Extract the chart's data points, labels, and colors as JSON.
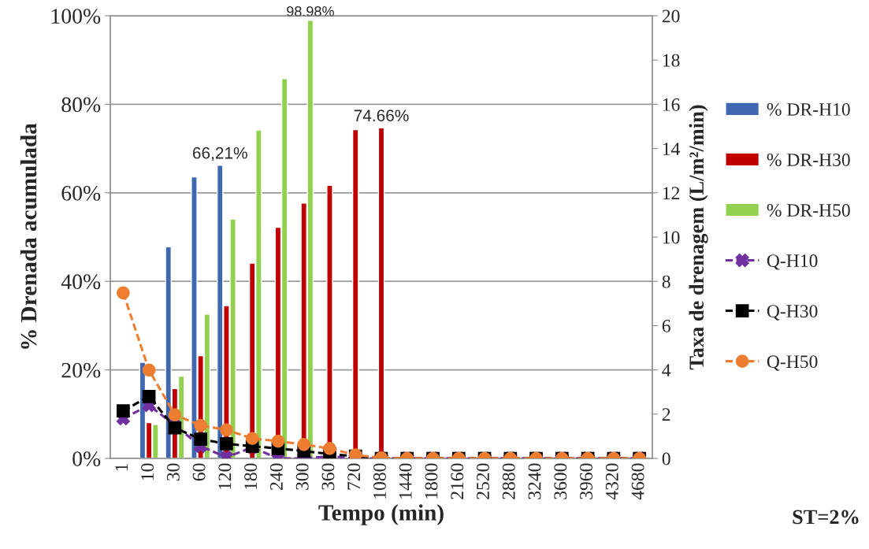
{
  "chart_data": {
    "type": "bar",
    "xlabel": "Tempo (min)",
    "ylabel": "% Drenada acumulada",
    "y2label": "Taxa de drenagem (L/m²/min)",
    "categories": [
      "1",
      "10",
      "30",
      "60",
      "120",
      "180",
      "240",
      "300",
      "360",
      "720",
      "1080",
      "1440",
      "1800",
      "2160",
      "2520",
      "2880",
      "3240",
      "3600",
      "3960",
      "4320",
      "4680"
    ],
    "series": [
      {
        "name": "% DR-H10",
        "color": "#4068b0",
        "values": [
          null,
          21.7,
          47.8,
          63.6,
          66.21,
          null,
          null,
          null,
          null,
          null,
          null,
          null,
          null,
          null,
          null,
          null,
          null,
          null,
          null,
          null,
          null
        ],
        "value_labels": [
          null,
          null,
          null,
          null,
          "66,21%",
          null,
          null,
          null,
          null,
          null,
          null,
          null,
          null,
          null,
          null,
          null,
          null,
          null,
          null,
          null,
          null
        ]
      },
      {
        "name": "% DR-H30",
        "color": "#c00000",
        "values": [
          null,
          8.1,
          15.8,
          23.2,
          34.5,
          44.1,
          52.2,
          57.7,
          61.7,
          74.3,
          74.66,
          null,
          null,
          null,
          null,
          null,
          null,
          null,
          null,
          null,
          null
        ],
        "value_labels": [
          null,
          null,
          null,
          null,
          null,
          null,
          null,
          null,
          null,
          null,
          "74.66%",
          null,
          null,
          null,
          null,
          null,
          null,
          null,
          null,
          null,
          null
        ]
      },
      {
        "name": "% DR-H50",
        "color": "#92d050",
        "values": [
          null,
          7.7,
          18.6,
          32.6,
          54.1,
          74.2,
          85.8,
          98.98,
          null,
          null,
          null,
          null,
          null,
          null,
          null,
          null,
          null,
          null,
          null,
          null,
          null
        ],
        "value_labels": [
          null,
          null,
          null,
          null,
          null,
          null,
          null,
          "98.98%",
          null,
          null,
          null,
          null,
          null,
          null,
          null,
          null,
          null,
          null,
          null,
          null,
          null
        ]
      },
      {
        "name": "Q-H10",
        "type": "line",
        "axis": "y2",
        "color": "#7030a0",
        "marker": "cross",
        "line_style": "dashed",
        "values": [
          1.8,
          2.4,
          1.5,
          0.55,
          0.05,
          0.5,
          0,
          0,
          0.1,
          0,
          0,
          0,
          0,
          0,
          0,
          0,
          0,
          0,
          0,
          0,
          0
        ]
      },
      {
        "name": "Q-H30",
        "type": "line",
        "axis": "y2",
        "color": "#000000",
        "marker": "square",
        "line_style": "dashed",
        "values": [
          2.15,
          2.8,
          1.38,
          0.87,
          0.66,
          0.55,
          0.45,
          0.33,
          0.2,
          0.1,
          0,
          0,
          0,
          0,
          0,
          0,
          0,
          0,
          0,
          0,
          0
        ]
      },
      {
        "name": "Q-H50",
        "type": "line",
        "axis": "y2",
        "color": "#ed7d31",
        "marker": "circle",
        "line_style": "dashed",
        "values": [
          7.48,
          3.99,
          1.97,
          1.49,
          1.29,
          0.9,
          0.78,
          0.63,
          0.45,
          0.16,
          0.02,
          0,
          0,
          0,
          0,
          0,
          0,
          0,
          0,
          0,
          0
        ]
      }
    ],
    "ylim": [
      0,
      100
    ],
    "yticks": [
      {
        "value": 0,
        "label": "0%"
      },
      {
        "value": 20,
        "label": "20%"
      },
      {
        "value": 40,
        "label": "40%"
      },
      {
        "value": 60,
        "label": "60%"
      },
      {
        "value": 80,
        "label": "80%"
      },
      {
        "value": 100,
        "label": "100%"
      }
    ],
    "y2lim": [
      0,
      20
    ],
    "y2ticks": [
      0,
      2,
      4,
      6,
      8,
      10,
      12,
      14,
      16,
      18,
      20
    ],
    "grid": "y",
    "legend": "right",
    "annotations": [
      "ST=2%"
    ]
  }
}
